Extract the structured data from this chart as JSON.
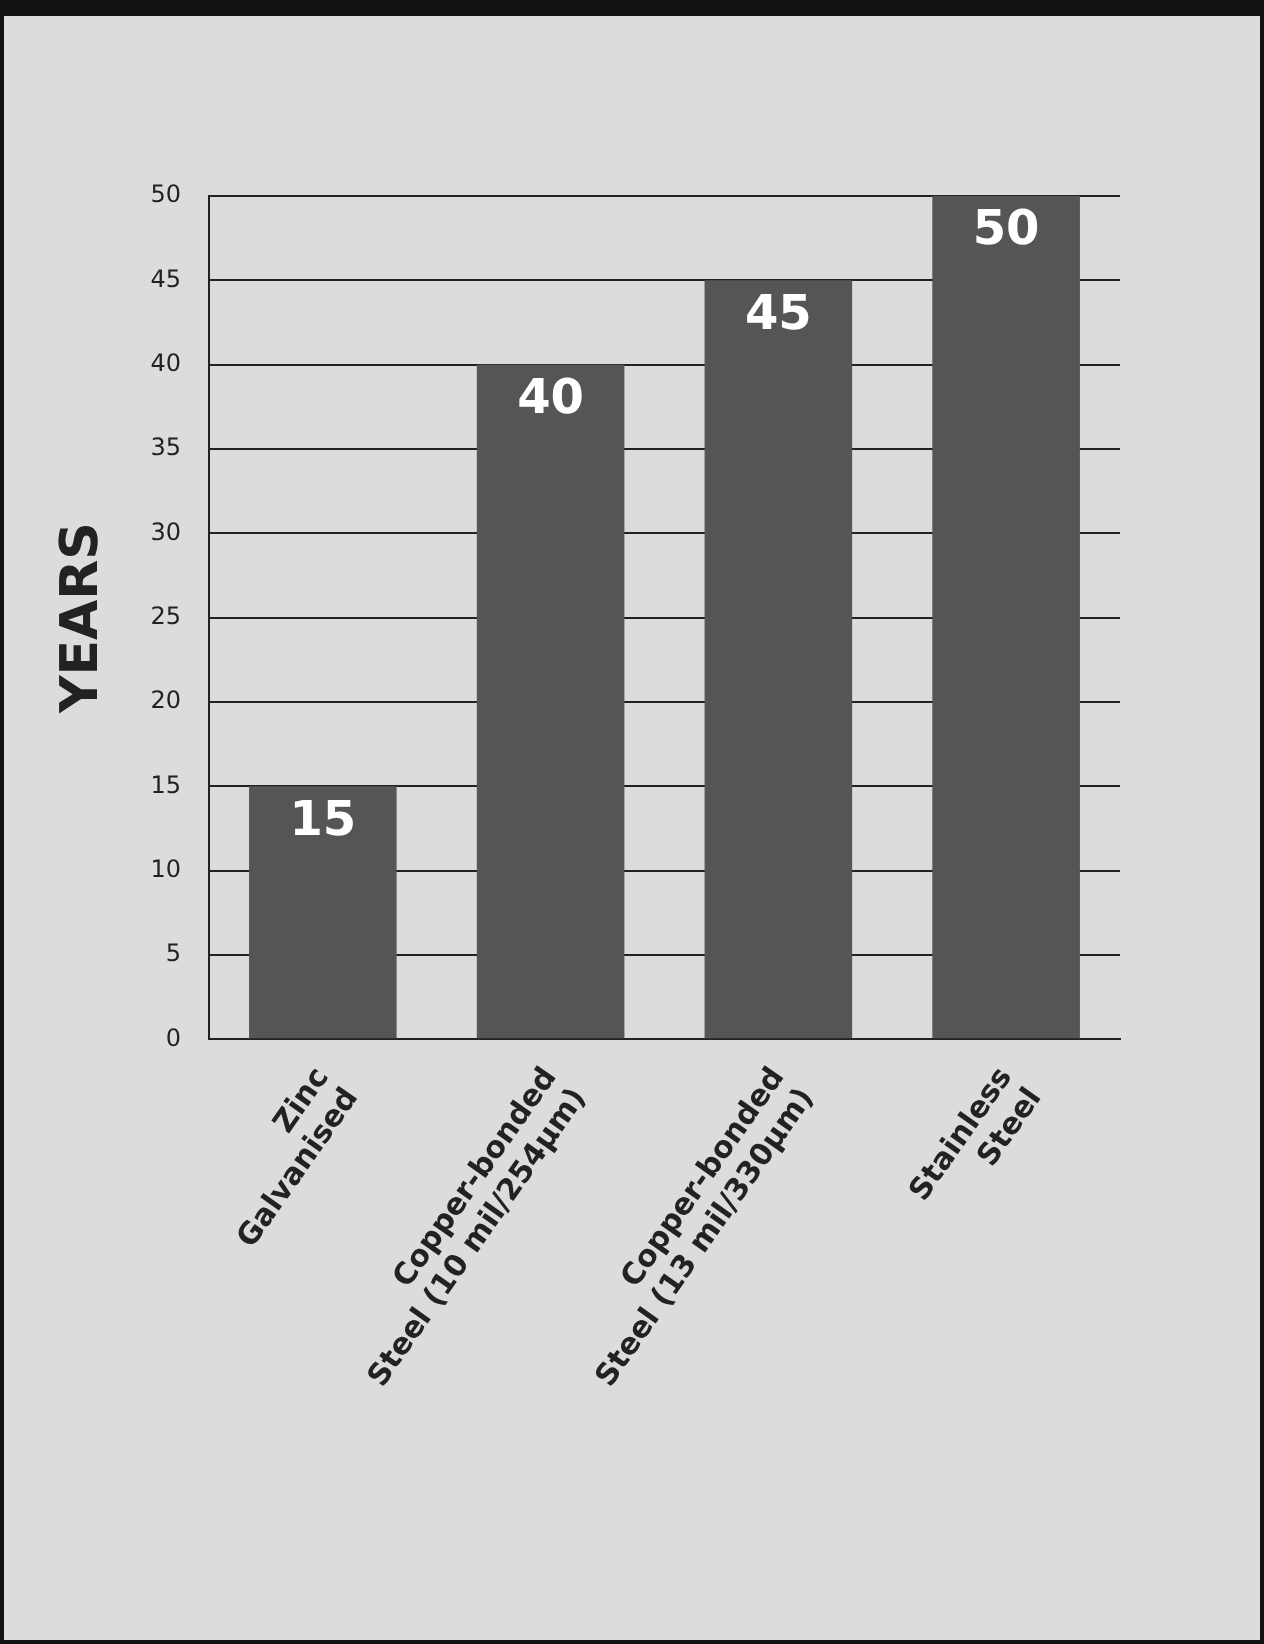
{
  "chart_data": {
    "type": "bar",
    "ylabel": "YEARS",
    "categories": [
      "Zinc Galvanised",
      "Copper-bonded Steel (10 mil/254µm)",
      "Copper-bonded Steel (13 mil/330µm)",
      "Stainless Steel"
    ],
    "values": [
      15,
      40,
      45,
      50
    ],
    "color": "#555555",
    "ylim": [
      0,
      50
    ],
    "yticks": [
      0,
      5,
      10,
      15,
      20,
      25,
      30,
      35,
      40,
      45,
      50
    ],
    "grid": "y",
    "data_labels": true
  }
}
